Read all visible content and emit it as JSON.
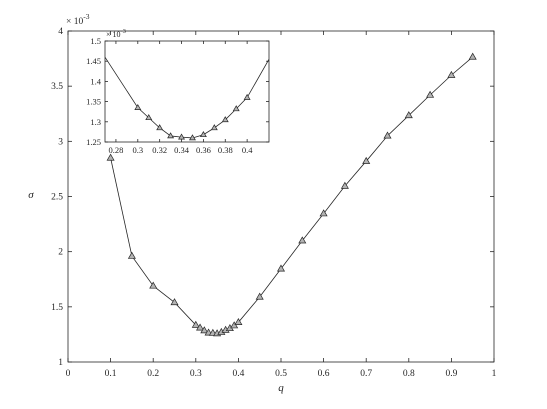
{
  "chart_data": [
    {
      "type": "line",
      "xlabel": "q",
      "ylabel": "σ",
      "y_multiplier": "× 10",
      "y_exponent": "-3",
      "xlim": [
        0,
        1
      ],
      "ylim": [
        1,
        4
      ],
      "x_ticks": [
        0,
        0.1,
        0.2,
        0.3,
        0.4,
        0.5,
        0.6,
        0.7,
        0.8,
        0.9,
        1
      ],
      "x_tick_labels": [
        "0",
        "0.1",
        "0.2",
        "0.3",
        "0.4",
        "0.5",
        "0.6",
        "0.7",
        "0.8",
        "0.9",
        "1"
      ],
      "y_ticks": [
        1,
        1.5,
        2,
        2.5,
        3,
        3.5,
        4
      ],
      "y_tick_labels": [
        "1",
        "1.5",
        "2",
        "2.5",
        "3",
        "3.5",
        "4"
      ],
      "marker": "triangle",
      "grid": false,
      "series": [
        {
          "x": [
            0.1,
            0.15,
            0.2,
            0.25,
            0.3,
            0.31,
            0.32,
            0.33,
            0.34,
            0.35,
            0.36,
            0.37,
            0.38,
            0.39,
            0.4,
            0.45,
            0.5,
            0.55,
            0.6,
            0.65,
            0.7,
            0.75,
            0.8,
            0.85,
            0.9,
            0.95
          ],
          "y": [
            2.85,
            1.96,
            1.69,
            1.54,
            1.335,
            1.31,
            1.285,
            1.265,
            1.262,
            1.258,
            1.27,
            1.29,
            1.305,
            1.33,
            1.36,
            1.59,
            1.845,
            2.1,
            2.345,
            2.595,
            2.82,
            3.05,
            3.235,
            3.42,
            3.6,
            3.765
          ]
        }
      ]
    },
    {
      "type": "line",
      "inset": true,
      "y_multiplier": "× 10",
      "y_exponent": "-3",
      "xlim": [
        0.27,
        0.42
      ],
      "ylim": [
        1.25,
        1.5
      ],
      "x_ticks": [
        0.28,
        0.3,
        0.32,
        0.34,
        0.36,
        0.38,
        0.4
      ],
      "x_tick_labels": [
        "0.28",
        "0.3",
        "0.32",
        "0.34",
        "0.36",
        "0.38",
        "0.4"
      ],
      "y_ticks": [
        1.25,
        1.3,
        1.35,
        1.4,
        1.45,
        1.5
      ],
      "y_tick_labels": [
        "1.25",
        "1.3",
        "1.35",
        "1.4",
        "1.45",
        "1.5"
      ],
      "marker": "triangle",
      "grid": false,
      "series": [
        {
          "x": [
            0.3,
            0.31,
            0.32,
            0.33,
            0.34,
            0.35,
            0.36,
            0.37,
            0.38,
            0.39,
            0.4
          ],
          "y": [
            1.335,
            1.31,
            1.285,
            1.265,
            1.262,
            1.26,
            1.268,
            1.285,
            1.305,
            1.332,
            1.36
          ]
        }
      ],
      "line_x": [
        0.27,
        0.3,
        0.31,
        0.32,
        0.33,
        0.34,
        0.35,
        0.36,
        0.37,
        0.38,
        0.39,
        0.4,
        0.42
      ],
      "line_y": [
        1.46,
        1.335,
        1.31,
        1.285,
        1.265,
        1.262,
        1.26,
        1.268,
        1.285,
        1.305,
        1.332,
        1.36,
        1.455
      ]
    }
  ]
}
